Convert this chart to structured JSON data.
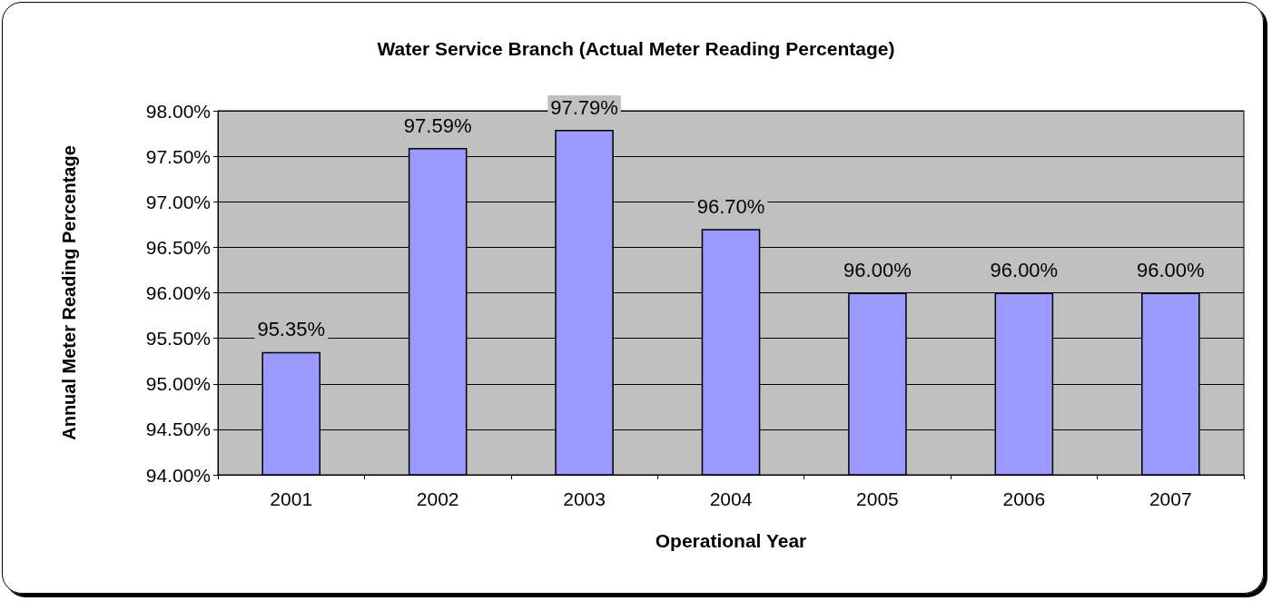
{
  "chart_data": {
    "type": "bar",
    "title": "Water Service Branch (Actual Meter Reading Percentage)",
    "xlabel": "Operational Year",
    "ylabel": "Annual Meter Reading Percentage",
    "categories": [
      "2001",
      "2002",
      "2003",
      "2004",
      "2005",
      "2006",
      "2007"
    ],
    "values": [
      95.35,
      97.59,
      97.79,
      96.7,
      96.0,
      96.0,
      96.0
    ],
    "value_labels": [
      "95.35%",
      "97.59%",
      "97.79%",
      "96.70%",
      "96.00%",
      "96.00%",
      "96.00%"
    ],
    "color": "#9999ff",
    "ylim": [
      94,
      98
    ],
    "yticks": [
      {
        "value": 94,
        "label": "94.00%"
      },
      {
        "value": 94.5,
        "label": "94.50%"
      },
      {
        "value": 95,
        "label": "95.00%"
      },
      {
        "value": 95.5,
        "label": "95.50%"
      },
      {
        "value": 96,
        "label": "96.00%"
      },
      {
        "value": 96.5,
        "label": "96.50%"
      },
      {
        "value": 97,
        "label": "97.00%"
      },
      {
        "value": 97.5,
        "label": "97.50%"
      },
      {
        "value": 98,
        "label": "98.00%"
      }
    ],
    "grid": "y"
  }
}
